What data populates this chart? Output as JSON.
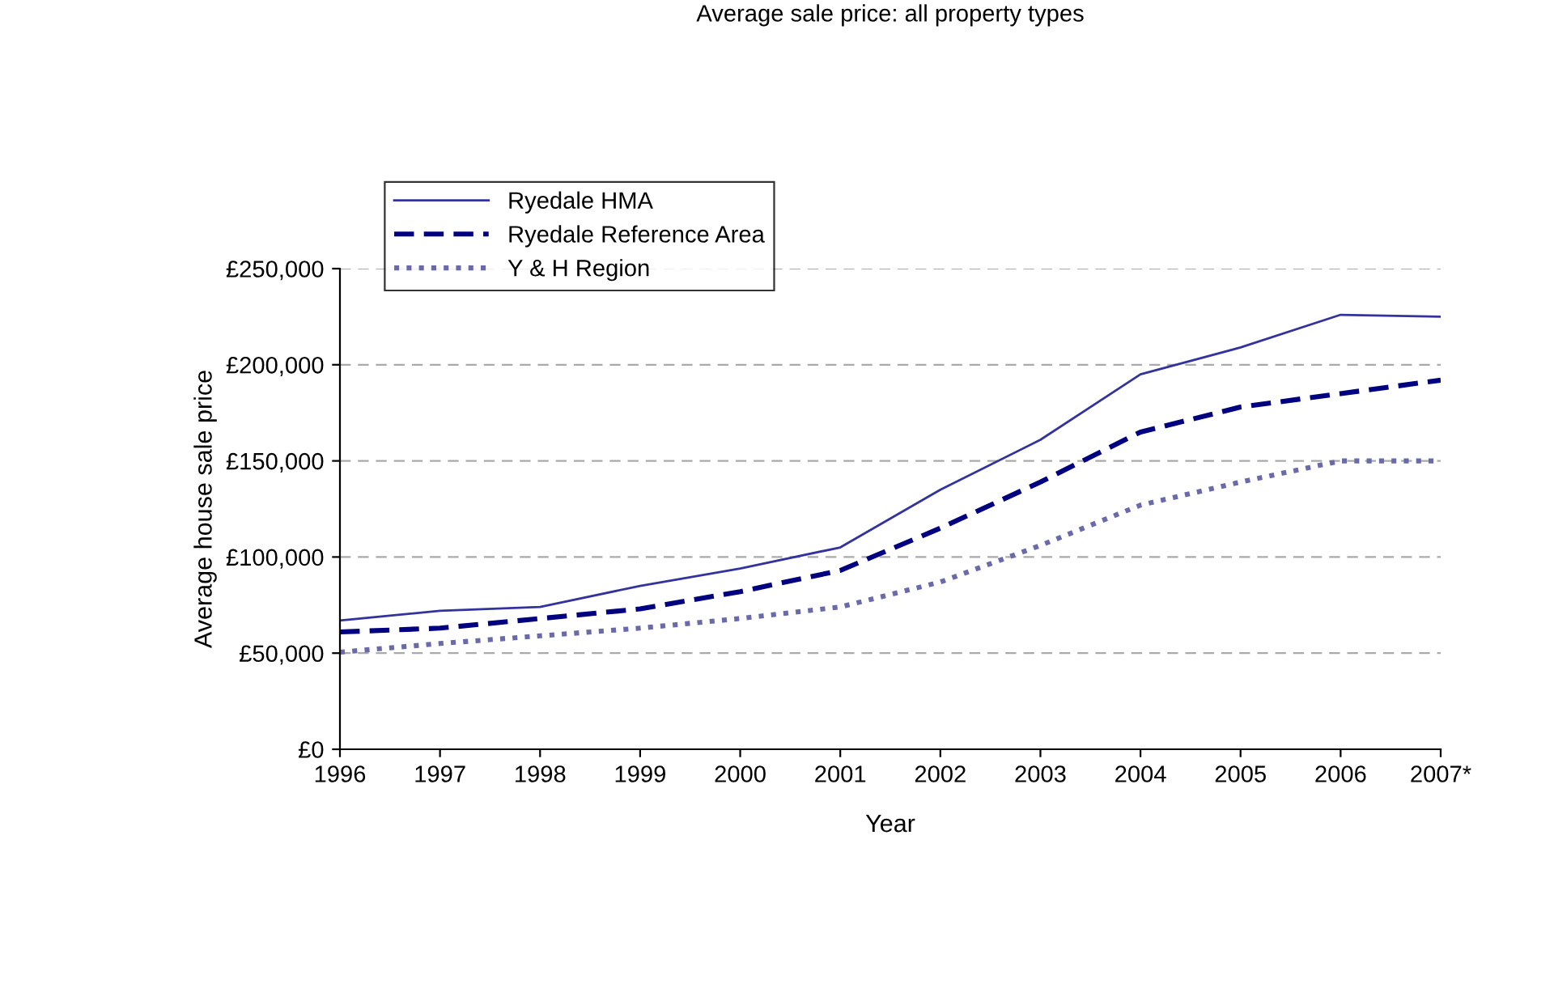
{
  "chart_data": {
    "type": "line",
    "title": "Average sale price: all property types",
    "xlabel": "Year",
    "ylabel": "Average house sale price",
    "categories": [
      "1996",
      "1997",
      "1998",
      "1999",
      "2000",
      "2001",
      "2002",
      "2003",
      "2004",
      "2005",
      "2006",
      "2007*"
    ],
    "series": [
      {
        "name": "Ryedale HMA",
        "color": "#3333a0",
        "line_style": "solid",
        "values": [
          67000,
          72000,
          74000,
          85000,
          94000,
          105000,
          135000,
          161000,
          195000,
          209000,
          226000,
          225000
        ]
      },
      {
        "name": "Ryedale Reference Area",
        "color": "#000080",
        "line_style": "dashed",
        "values": [
          61000,
          63000,
          68000,
          73000,
          82000,
          93000,
          115000,
          139000,
          165000,
          178000,
          185000,
          192000
        ]
      },
      {
        "name": "Y & H Region",
        "color": "#6a6aaa",
        "line_style": "dotted",
        "values": [
          50500,
          55000,
          59000,
          63000,
          68000,
          74000,
          87000,
          106000,
          127000,
          139000,
          150000,
          150000
        ]
      }
    ],
    "ylim": [
      0,
      250000
    ],
    "yticks": [
      {
        "value": 0,
        "label": "£0"
      },
      {
        "value": 50000,
        "label": "£50,000"
      },
      {
        "value": 100000,
        "label": "£100,000"
      },
      {
        "value": 150000,
        "label": "£150,000"
      },
      {
        "value": 200000,
        "label": "£200,000"
      },
      {
        "value": 250000,
        "label": "£250,000"
      }
    ],
    "grid": "y",
    "legend": "top left",
    "marker": "none"
  }
}
